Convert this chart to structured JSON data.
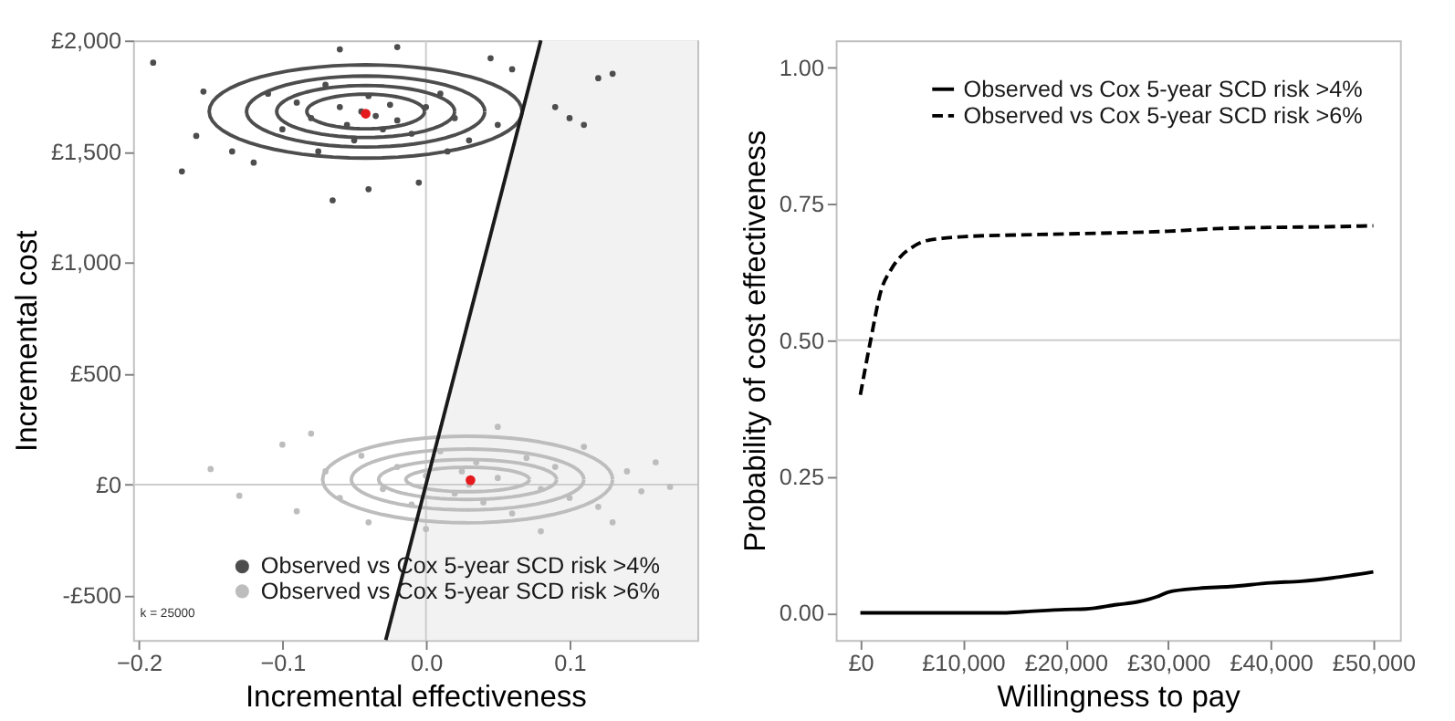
{
  "chart_data": [
    {
      "type": "scatter",
      "xlabel": "Incremental effectiveness",
      "ylabel": "Incremental cost",
      "xlim": [
        -0.204,
        0.189
      ],
      "ylim": [
        -700,
        2000
      ],
      "xticks": [
        -0.2,
        -0.1,
        {
          "value": 0,
          "label": "0.0"
        },
        0.1
      ],
      "yticks": [
        {
          "value": -500,
          "label": "-£500"
        },
        {
          "value": 0,
          "label": "£0"
        },
        {
          "value": 500,
          "label": "£500"
        },
        {
          "value": 1000,
          "label": "£1,000"
        },
        {
          "value": 1500,
          "label": "£1,500"
        },
        {
          "value": 2000,
          "label": "£2,000"
        }
      ],
      "legend": "bottom right",
      "annotations": [
        "k = 25000"
      ],
      "ref_lines": [
        {
          "axis": "x",
          "value": 0,
          "color": "#cccccc"
        },
        {
          "axis": "y",
          "value": 0,
          "color": "#cccccc"
        }
      ],
      "series": [
        {
          "type": "scatter",
          "marker": "circle",
          "name": "Observed vs Cox 5-year SCD risk >4%",
          "color": "#4d4d4d",
          "x": [
            -0.19,
            -0.155,
            -0.135,
            -0.16,
            -0.17,
            -0.12,
            -0.1,
            -0.09,
            -0.08,
            -0.07,
            -0.06,
            -0.055,
            -0.05,
            -0.045,
            -0.04,
            -0.035,
            -0.03,
            -0.025,
            -0.02,
            -0.01,
            0.0,
            0.01,
            0.02,
            0.03,
            0.05,
            0.06,
            0.09,
            0.1,
            0.11,
            0.13,
            0.12,
            -0.065,
            -0.04,
            -0.005,
            -0.06,
            -0.02,
            0.045,
            -0.11,
            -0.075,
            0.015
          ],
          "values": [
            1900,
            1770,
            1500,
            1570,
            1410,
            1450,
            1600,
            1720,
            1650,
            1800,
            1700,
            1620,
            1550,
            1680,
            1750,
            1660,
            1600,
            1710,
            1640,
            1580,
            1700,
            1760,
            1650,
            1550,
            1620,
            1870,
            1700,
            1650,
            1620,
            1850,
            1830,
            1280,
            1330,
            1360,
            1960,
            1970,
            1920,
            1760,
            1500,
            1500
          ]
        },
        {
          "type": "scatter",
          "marker": "circle",
          "name": "Observed vs Cox 5-year SCD risk >6%",
          "color": "#bdbdbd",
          "x": [
            -0.15,
            -0.13,
            -0.1,
            -0.09,
            -0.07,
            -0.06,
            -0.045,
            -0.03,
            -0.02,
            -0.01,
            0.0,
            0.01,
            0.02,
            0.025,
            0.03,
            0.035,
            0.04,
            0.05,
            0.06,
            0.07,
            0.08,
            0.09,
            0.1,
            0.11,
            0.12,
            0.14,
            0.15,
            0.16,
            -0.08,
            0.05,
            0.0,
            0.08,
            -0.04,
            0.13,
            0.17
          ],
          "values": [
            70,
            -50,
            180,
            -120,
            60,
            -60,
            130,
            -20,
            80,
            -90,
            40,
            150,
            -40,
            60,
            0,
            100,
            -80,
            30,
            -130,
            120,
            -20,
            80,
            -60,
            170,
            -100,
            60,
            -30,
            100,
            230,
            260,
            -200,
            -210,
            -170,
            -170,
            -10
          ]
        },
        {
          "type": "line",
          "color": "#1a1a1a",
          "x": [
            -0.028,
            0.08
          ],
          "values": [
            -700,
            2000
          ]
        },
        {
          "type": "scatter",
          "marker": "circle",
          "color": "#e41a1c",
          "x": [
            -0.042,
            0.031
          ],
          "values": [
            1670,
            20
          ]
        }
      ]
    },
    {
      "type": "line",
      "xlabel": "Willingness to pay",
      "ylabel": "Probability of cost effectiveness",
      "xlim": [
        -2400,
        52600
      ],
      "ylim": [
        -0.05,
        1.05
      ],
      "xticks": [
        {
          "value": 0,
          "label": "£0"
        },
        {
          "value": 10000,
          "label": "£10,000"
        },
        {
          "value": 20000,
          "label": "£20,000"
        },
        {
          "value": 30000,
          "label": "£30,000"
        },
        {
          "value": 40000,
          "label": "£40,000"
        },
        {
          "value": 50000,
          "label": "£50,000"
        }
      ],
      "yticks": [
        {
          "value": 0,
          "label": "0.00"
        },
        {
          "value": 0.25,
          "label": "0.25"
        },
        {
          "value": 0.5,
          "label": "0.50"
        },
        {
          "value": 0.75,
          "label": "0.75"
        },
        {
          "value": 1,
          "label": "1.00"
        }
      ],
      "legend": "top right",
      "ref_lines": [
        {
          "axis": "y",
          "value": 0.5,
          "color": "#cccccc"
        }
      ],
      "series": [
        {
          "name": "Observed vs Cox 5-year SCD risk >4%",
          "color": "#000000",
          "line_style": "solid",
          "x": [
            0,
            14000,
            16000,
            20000,
            22000,
            25000,
            27000,
            29000,
            30000,
            33000,
            36000,
            40000,
            43000,
            46000,
            50000
          ],
          "values": [
            0,
            0,
            0.002,
            0.006,
            0.007,
            0.015,
            0.02,
            0.03,
            0.038,
            0.045,
            0.048,
            0.055,
            0.058,
            0.064,
            0.075
          ]
        },
        {
          "name": "Observed vs Cox 5-year SCD risk >6%",
          "color": "#000000",
          "line_style": "dashed",
          "x": [
            0,
            1000,
            2000,
            3000,
            4000,
            5000,
            6000,
            8000,
            10000,
            15000,
            20000,
            25000,
            30000,
            35000,
            40000,
            45000,
            50000
          ],
          "values": [
            0.4,
            0.5,
            0.59,
            0.63,
            0.655,
            0.67,
            0.68,
            0.687,
            0.69,
            0.693,
            0.695,
            0.697,
            0.7,
            0.705,
            0.707,
            0.708,
            0.71
          ]
        }
      ]
    }
  ]
}
